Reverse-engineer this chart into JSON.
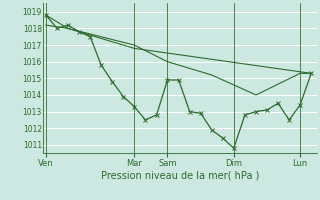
{
  "xlabel": "Pression niveau de la mer( hPa )",
  "bg_color": "#cce8e0",
  "grid_color": "#ffffff",
  "line_color": "#2d6b2d",
  "ylim": [
    1010.5,
    1019.5
  ],
  "yticks": [
    1011,
    1012,
    1013,
    1014,
    1015,
    1016,
    1017,
    1018,
    1019
  ],
  "day_labels": [
    "Ven",
    "Mar",
    "Sam",
    "Dim",
    "Lun"
  ],
  "day_positions": [
    0.0,
    0.333,
    0.458,
    0.708,
    0.958
  ],
  "vline_positions": [
    0.0,
    0.333,
    0.458,
    0.708,
    0.958
  ],
  "line1_x": [
    0.0,
    0.042,
    0.083,
    0.125,
    0.167,
    0.208,
    0.25,
    0.292,
    0.333,
    0.375,
    0.417,
    0.458,
    0.5,
    0.542,
    0.583,
    0.625,
    0.667,
    0.708,
    0.75,
    0.792,
    0.833,
    0.875,
    0.917,
    0.958,
    1.0
  ],
  "line1_y": [
    1018.8,
    1018.0,
    1018.2,
    1017.8,
    1017.5,
    1015.8,
    1014.8,
    1013.9,
    1013.3,
    1012.5,
    1012.8,
    1014.9,
    1014.9,
    1013.0,
    1012.9,
    1011.9,
    1011.4,
    1010.8,
    1012.8,
    1013.0,
    1013.1,
    1013.5,
    1012.5,
    1013.4,
    1015.3
  ],
  "line2_x": [
    0.0,
    0.083,
    0.333,
    0.458,
    0.625,
    0.792,
    0.958,
    1.0
  ],
  "line2_y": [
    1018.8,
    1018.0,
    1017.0,
    1016.0,
    1015.2,
    1014.0,
    1015.3,
    1015.3
  ],
  "line3_x": [
    0.0,
    0.083,
    0.333,
    1.0
  ],
  "line3_y": [
    1018.2,
    1018.0,
    1016.8,
    1015.3
  ]
}
